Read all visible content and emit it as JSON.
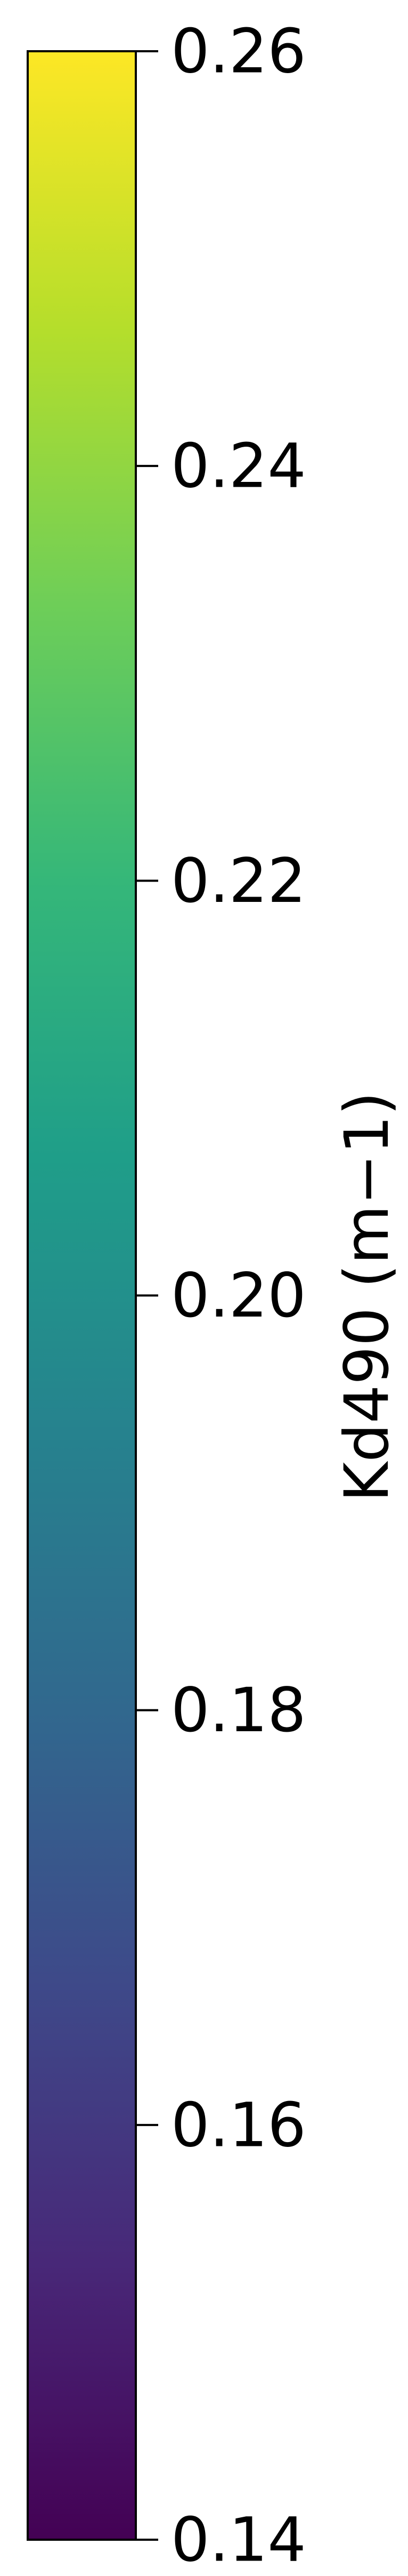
{
  "chart_data": {
    "type": "heatmap",
    "orientation": "vertical",
    "colormap": "viridis",
    "ylabel": "Kd490 (m−1)",
    "ylim": [
      0.14,
      0.26
    ],
    "ticks": [
      0.14,
      0.16,
      0.18,
      0.2,
      0.22,
      0.24,
      0.26
    ],
    "tick_labels": [
      "0.14",
      "0.16",
      "0.18",
      "0.20",
      "0.22",
      "0.24",
      "0.26"
    ],
    "colors": [
      "#440154",
      "#482878",
      "#3e4989",
      "#31688e",
      "#26828e",
      "#1f9e89",
      "#35b779",
      "#6ece58",
      "#b5de2b",
      "#fde725"
    ]
  }
}
